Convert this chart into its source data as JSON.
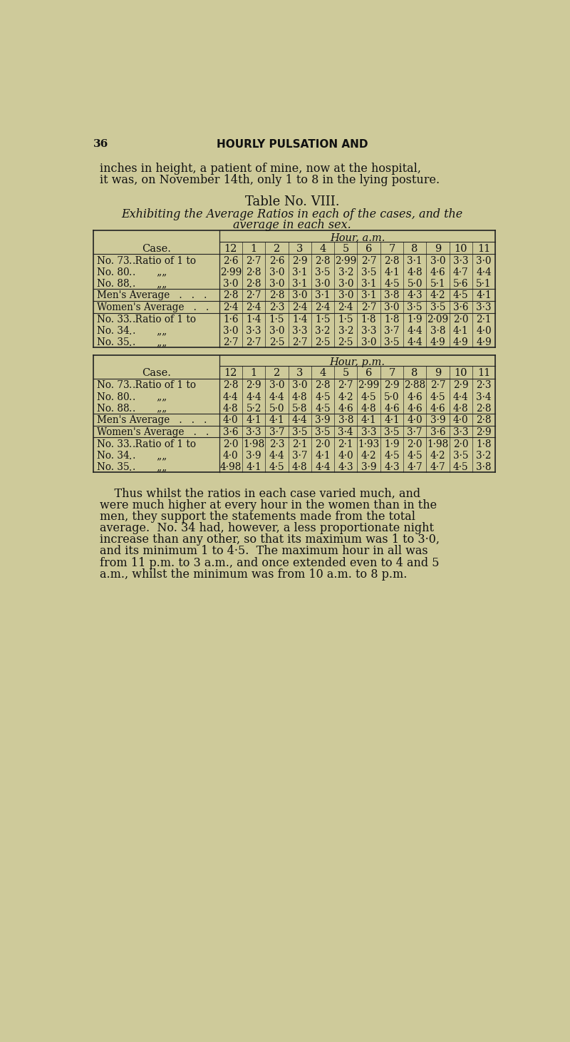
{
  "bg_color": "#ceca9a",
  "page_number": "36",
  "header": "HOURLY PULSATION AND",
  "hours": [
    "12",
    "1",
    "2",
    "3",
    "4",
    "5",
    "6",
    "7",
    "8",
    "9",
    "10",
    "11"
  ],
  "am_table": {
    "hour_label": "Hour, a.m.",
    "rows": [
      {
        "label1": "No. 73 .",
        "label2": ". Ratio of 1 to",
        "values": [
          "2·6",
          "2·7",
          "2·6",
          "2·9",
          "2·8",
          "2·99",
          "2·7",
          "2·8",
          "3·1",
          "3·0",
          "3·3",
          "3·0"
        ]
      },
      {
        "label1": "No. 80 .",
        "label2": ".        „„",
        "values": [
          "2·99",
          "2·8",
          "3·0",
          "3·1",
          "3·5",
          "3·2",
          "3·5",
          "4·1",
          "4·8",
          "4·6",
          "4·7",
          "4·4"
        ]
      },
      {
        "label1": "No. 88 .",
        "label2": ".        „„",
        "values": [
          "3·0",
          "2·8",
          "3·0",
          "3·1",
          "3·0",
          "3·0",
          "3·1",
          "4·5",
          "5·0",
          "5·1",
          "5·6",
          "5·1"
        ]
      },
      {
        "label1": "Men's Average",
        "label2": "   .   .   .",
        "values": [
          "2·8",
          "2·7",
          "2·8",
          "3·0",
          "3·1",
          "3·0",
          "3·1",
          "3·8",
          "4·3",
          "4·2",
          "4·5",
          "4·1"
        ],
        "avg": true
      },
      {
        "label1": "Women's Average",
        "label2": "   .   .",
        "values": [
          "2·4",
          "2·4",
          "2·3",
          "2·4",
          "2·4",
          "2·4",
          "2·7",
          "3·0",
          "3·5",
          "3·5",
          "3·6",
          "3·3"
        ],
        "avg": true
      },
      {
        "label1": "No. 33 .",
        "label2": ". Ratio of 1 to",
        "values": [
          "1·6",
          "1·4",
          "1·5",
          "1·4",
          "1·5",
          "1·5",
          "1·8",
          "1·8",
          "1·9",
          "2·09",
          "2·0",
          "2·1"
        ]
      },
      {
        "label1": "No. 34 .",
        "label2": ".        „„",
        "values": [
          "3·0",
          "3·3",
          "3·0",
          "3·3",
          "3·2",
          "3·2",
          "3·3",
          "3·7",
          "4·4",
          "3·8",
          "4·1",
          "4·0"
        ]
      },
      {
        "label1": "No. 35 .",
        "label2": ".        „„",
        "values": [
          "2·7",
          "2·7",
          "2·5",
          "2·7",
          "2·5",
          "2·5",
          "3·0",
          "3·5",
          "4·4",
          "4·9",
          "4·9",
          "4·9"
        ]
      }
    ]
  },
  "pm_table": {
    "hour_label": "Hour, p.m.",
    "rows": [
      {
        "label1": "No. 73 .",
        "label2": ". Ratio of 1 to",
        "values": [
          "2·8",
          "2·9",
          "3·0",
          "3·0",
          "2·8",
          "2·7",
          "2·99",
          "2·9",
          "2·88",
          "2·7",
          "2·9",
          "2·3"
        ]
      },
      {
        "label1": "No. 80 .",
        "label2": ".        „„",
        "values": [
          "4·4",
          "4·4",
          "4·4",
          "4·8",
          "4·5",
          "4·2",
          "4·5",
          "5·0",
          "4·6",
          "4·5",
          "4·4",
          "3·4"
        ]
      },
      {
        "label1": "No. 88 .",
        "label2": ".        „„",
        "values": [
          "4·8",
          "5·2",
          "5·0",
          "5·8",
          "4·5",
          "4·6",
          "4·8",
          "4·6",
          "4·6",
          "4·6",
          "4·8",
          "2·8"
        ]
      },
      {
        "label1": "Men's Average",
        "label2": "   .   .   .",
        "values": [
          "4·0",
          "4·1",
          "4·1",
          "4·4",
          "3·9",
          "3·8",
          "4·1",
          "4·1",
          "4·0",
          "3·9",
          "4·0",
          "2·8"
        ],
        "avg": true
      },
      {
        "label1": "Women's Average",
        "label2": "   .   .",
        "values": [
          "3·6",
          "3·3",
          "3·7",
          "3·5",
          "3·5",
          "3·4",
          "3·3",
          "3·5",
          "3·7",
          "3·6",
          "3·3",
          "2·9"
        ],
        "avg": true
      },
      {
        "label1": "No. 33 .",
        "label2": ". Ratio of 1 to",
        "values": [
          "2·0",
          "1·98",
          "2·3",
          "2·1",
          "2·0",
          "2·1",
          "1·93",
          "1·9",
          "2·0",
          "1·98",
          "2·0",
          "1·8"
        ]
      },
      {
        "label1": "No. 34 .",
        "label2": ".        „„",
        "values": [
          "4·0",
          "3·9",
          "4·4",
          "3·7",
          "4·1",
          "4·0",
          "4·2",
          "4·5",
          "4·5",
          "4·2",
          "3·5",
          "3·2"
        ]
      },
      {
        "label1": "No. 35 .",
        "label2": ".        „„",
        "values": [
          "4·98",
          "4·1",
          "4·5",
          "4·8",
          "4·4",
          "4·3",
          "3·9",
          "4·3",
          "4·7",
          "4·7",
          "4·5",
          "3·8"
        ]
      }
    ]
  },
  "footer_lines": [
    "    Thus whilst the ratios in each case varied much, and",
    "were much higher at every hour in the women than in the",
    "men, they support the statements made from the total",
    "average.  No. 34 had, however, a less proportionate night",
    "increase than any other, so that its maximum was 1 to 3·0,",
    "and its minimum 1 to 4·5.  The maximum hour in all was",
    "from 11 p.m. to 3 a.m., and once extended even to 4 and 5",
    "a.m., whilst the minimum was from 10 a.m. to 8 p.m."
  ]
}
